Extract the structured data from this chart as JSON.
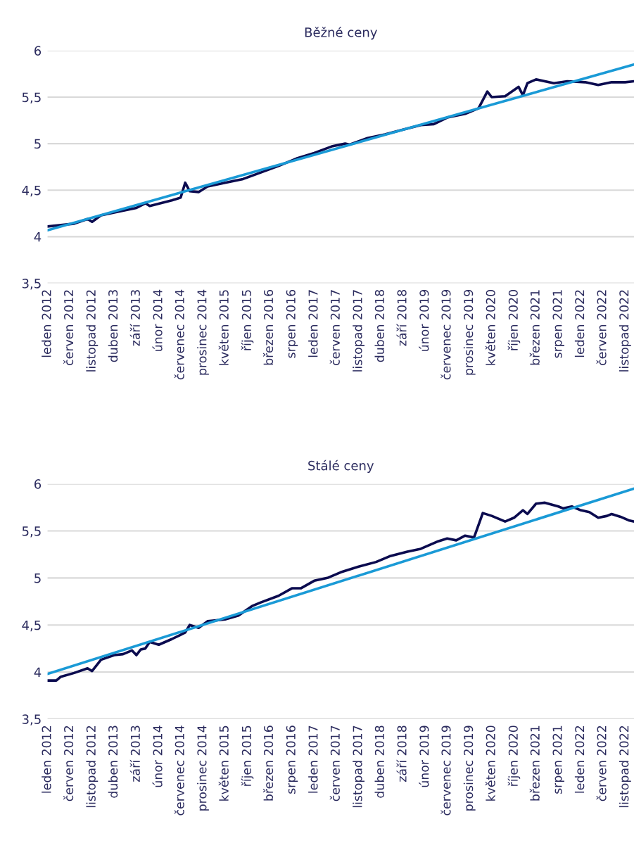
{
  "chart_data": [
    {
      "type": "line",
      "title": "Běžné ceny",
      "ylim": [
        3.5,
        6
      ],
      "yticks": [
        {
          "value": 3.5,
          "label": "3,5"
        },
        4,
        {
          "value": 4.5,
          "label": "4,5"
        },
        5,
        {
          "value": 5.5,
          "label": "5,5"
        },
        6
      ],
      "xlim": [
        "2012-01",
        "2023-01"
      ],
      "xticks": [
        {
          "value": "2012-01",
          "label": "leden 2012"
        },
        {
          "value": "2012-06",
          "label": "červen 2012"
        },
        {
          "value": "2012-11",
          "label": "listopad 2012"
        },
        {
          "value": "2013-04",
          "label": "duben 2013"
        },
        {
          "value": "2013-09",
          "label": "září 2013"
        },
        {
          "value": "2014-02",
          "label": "únor 2014"
        },
        {
          "value": "2014-07",
          "label": "červenec 2014"
        },
        {
          "value": "2014-12",
          "label": "prosinec 2014"
        },
        {
          "value": "2015-05",
          "label": "květen 2015"
        },
        {
          "value": "2015-10",
          "label": "říjen 2015"
        },
        {
          "value": "2016-03",
          "label": "březen 2016"
        },
        {
          "value": "2016-08",
          "label": "srpen 2016"
        },
        {
          "value": "2017-01",
          "label": "leden 2017"
        },
        {
          "value": "2017-06",
          "label": "červen 2017"
        },
        {
          "value": "2017-11",
          "label": "listopad 2017"
        },
        {
          "value": "2018-04",
          "label": "duben 2018"
        },
        {
          "value": "2018-09",
          "label": "září 2018"
        },
        {
          "value": "2019-02",
          "label": "únor 2019"
        },
        {
          "value": "2019-07",
          "label": "červenec 2019"
        },
        {
          "value": "2019-12",
          "label": "prosinec 2019"
        },
        {
          "value": "2020-05",
          "label": "květen 2020"
        },
        {
          "value": "2020-10",
          "label": "říjen 2020"
        },
        {
          "value": "2021-03",
          "label": "březen 2021"
        },
        {
          "value": "2021-08",
          "label": "srpen 2021"
        },
        {
          "value": "2022-01",
          "label": "leden 2022"
        },
        {
          "value": "2022-06",
          "label": "červen 2022"
        },
        {
          "value": "2022-11",
          "label": "listopad 2022"
        }
      ],
      "grid": "y",
      "legend": false,
      "marker": "none",
      "line_style": "solid",
      "series": [
        {
          "color": "#0b0b4f",
          "x": [
            "2012-01",
            "2012-07",
            "2012-10",
            "2012-11",
            "2013-01",
            "2013-05",
            "2013-09",
            "2013-11",
            "2013-12",
            "2014-05",
            "2014-07",
            "2014-08",
            "2014-09",
            "2014-11",
            "2015-01",
            "2015-05",
            "2015-09",
            "2016-01",
            "2016-05",
            "2016-09",
            "2017-01",
            "2017-05",
            "2017-08",
            "2017-09",
            "2018-01",
            "2018-05",
            "2018-09",
            "2019-01",
            "2019-04",
            "2019-07",
            "2019-11",
            "2020-02",
            "2020-04",
            "2020-05",
            "2020-08",
            "2020-11",
            "2020-12",
            "2021-01",
            "2021-03",
            "2021-07",
            "2021-10",
            "2022-02",
            "2022-05",
            "2022-08",
            "2022-11",
            "2023-01"
          ],
          "values": [
            4.11,
            4.14,
            4.19,
            4.16,
            4.23,
            4.27,
            4.31,
            4.36,
            4.33,
            4.39,
            4.42,
            4.58,
            4.49,
            4.48,
            4.54,
            4.58,
            4.62,
            4.69,
            4.76,
            4.84,
            4.9,
            4.97,
            5.0,
            4.99,
            5.06,
            5.1,
            5.15,
            5.2,
            5.21,
            5.28,
            5.32,
            5.38,
            5.56,
            5.5,
            5.51,
            5.61,
            5.52,
            5.65,
            5.69,
            5.65,
            5.67,
            5.66,
            5.63,
            5.66,
            5.66,
            5.67
          ]
        },
        {
          "color": "#1a9ad6",
          "x": [
            "2012-01",
            "2023-01"
          ],
          "values": [
            4.07,
            5.85
          ]
        }
      ]
    },
    {
      "type": "line",
      "title": "Stálé ceny",
      "ylim": [
        3.5,
        6
      ],
      "yticks": [
        {
          "value": 3.5,
          "label": "3,5"
        },
        4,
        {
          "value": 4.5,
          "label": "4,5"
        },
        5,
        {
          "value": 5.5,
          "label": "5,5"
        },
        6
      ],
      "xlim": [
        "2012-01",
        "2023-01"
      ],
      "xticks": [
        {
          "value": "2012-01",
          "label": "leden 2012"
        },
        {
          "value": "2012-06",
          "label": "červen 2012"
        },
        {
          "value": "2012-11",
          "label": "listopad 2012"
        },
        {
          "value": "2013-04",
          "label": "duben 2013"
        },
        {
          "value": "2013-09",
          "label": "září 2013"
        },
        {
          "value": "2014-02",
          "label": "únor 2014"
        },
        {
          "value": "2014-07",
          "label": "červenec 2014"
        },
        {
          "value": "2014-12",
          "label": "prosinec 2014"
        },
        {
          "value": "2015-05",
          "label": "květen 2015"
        },
        {
          "value": "2015-10",
          "label": "říjen 2015"
        },
        {
          "value": "2016-03",
          "label": "březen 2016"
        },
        {
          "value": "2016-08",
          "label": "srpen 2016"
        },
        {
          "value": "2017-01",
          "label": "leden 2017"
        },
        {
          "value": "2017-06",
          "label": "červen 2017"
        },
        {
          "value": "2017-11",
          "label": "listopad 2017"
        },
        {
          "value": "2018-04",
          "label": "duben 2018"
        },
        {
          "value": "2018-09",
          "label": "září 2018"
        },
        {
          "value": "2019-02",
          "label": "únor 2019"
        },
        {
          "value": "2019-07",
          "label": "červenec 2019"
        },
        {
          "value": "2019-12",
          "label": "prosinec 2019"
        },
        {
          "value": "2020-05",
          "label": "květen 2020"
        },
        {
          "value": "2020-10",
          "label": "říjen 2020"
        },
        {
          "value": "2021-03",
          "label": "březen 2021"
        },
        {
          "value": "2021-08",
          "label": "srpen 2021"
        },
        {
          "value": "2022-01",
          "label": "leden 2022"
        },
        {
          "value": "2022-06",
          "label": "červen 2022"
        },
        {
          "value": "2022-11",
          "label": "listopad 2022"
        }
      ],
      "grid": "y",
      "legend": false,
      "marker": "none",
      "line_style": "solid",
      "series": [
        {
          "color": "#0b0b4f",
          "x": [
            "2012-01",
            "2012-03",
            "2012-04",
            "2012-07",
            "2012-10",
            "2012-11",
            "2013-01",
            "2013-04",
            "2013-06",
            "2013-08",
            "2013-09",
            "2013-10",
            "2013-11",
            "2013-12",
            "2014-02",
            "2014-05",
            "2014-08",
            "2014-09",
            "2014-11",
            "2015-01",
            "2015-05",
            "2015-08",
            "2015-11",
            "2016-01",
            "2016-05",
            "2016-08",
            "2016-10",
            "2017-01",
            "2017-04",
            "2017-07",
            "2017-11",
            "2018-03",
            "2018-06",
            "2018-10",
            "2019-01",
            "2019-05",
            "2019-07",
            "2019-09",
            "2019-11",
            "2020-01",
            "2020-03",
            "2020-05",
            "2020-08",
            "2020-10",
            "2020-12",
            "2021-01",
            "2021-03",
            "2021-05",
            "2021-08",
            "2021-09",
            "2021-11",
            "2022-01",
            "2022-03",
            "2022-05",
            "2022-07",
            "2022-08",
            "2022-10",
            "2022-12",
            "2023-01"
          ],
          "values": [
            3.91,
            3.91,
            3.95,
            3.99,
            4.04,
            4.01,
            4.13,
            4.18,
            4.19,
            4.23,
            4.18,
            4.24,
            4.25,
            4.32,
            4.29,
            4.35,
            4.42,
            4.5,
            4.47,
            4.54,
            4.56,
            4.6,
            4.7,
            4.74,
            4.81,
            4.89,
            4.89,
            4.97,
            5.0,
            5.06,
            5.12,
            5.17,
            5.23,
            5.28,
            5.31,
            5.39,
            5.42,
            5.4,
            5.45,
            5.43,
            5.69,
            5.66,
            5.6,
            5.64,
            5.72,
            5.68,
            5.79,
            5.8,
            5.76,
            5.74,
            5.76,
            5.72,
            5.7,
            5.64,
            5.66,
            5.68,
            5.65,
            5.61,
            5.6
          ]
        },
        {
          "color": "#1a9ad6",
          "x": [
            "2012-01",
            "2023-01"
          ],
          "values": [
            3.98,
            5.95
          ]
        }
      ]
    }
  ]
}
